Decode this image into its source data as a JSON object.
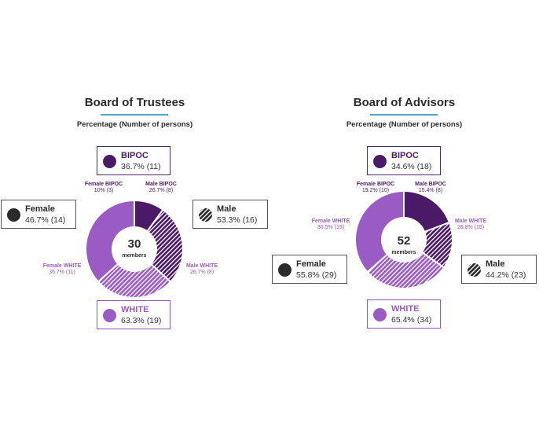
{
  "colors": {
    "dark_purple": "#4a1a66",
    "light_purple": "#9a5bc4",
    "teal": "#4aa9c9",
    "dark": "#2b2b2b"
  },
  "chart_data": [
    {
      "type": "pie",
      "title": "Board of Trustees",
      "subtitle": "Percentage (Number of persons)",
      "center_value": "30",
      "center_label": "members",
      "slices": [
        {
          "name": "Female BIPOC",
          "value": 10,
          "count": 3,
          "label": "Female BIPOC",
          "value_label": "10% (3)"
        },
        {
          "name": "Male BIPOC",
          "value": 26.7,
          "count": 8,
          "label": "Male BIPOC",
          "value_label": "26.7% (8)"
        },
        {
          "name": "Male WHITE",
          "value": 26.7,
          "count": 8,
          "label": "Male WHITE",
          "value_label": "26.7% (8)"
        },
        {
          "name": "Female WHITE",
          "value": 36.7,
          "count": 11,
          "label": "Female WHITE",
          "value_label": "36.7% (11)"
        }
      ],
      "legend": {
        "bipoc": {
          "label": "BIPOC",
          "value": "36.7% (11)"
        },
        "white": {
          "label": "WHITE",
          "value": "63.3% (19)"
        },
        "female": {
          "label": "Female",
          "value": "46.7% (14)"
        },
        "male": {
          "label": "Male",
          "value": "53.3% (16)"
        }
      }
    },
    {
      "type": "pie",
      "title": "Board of Advisors",
      "subtitle": "Percentage (Number of persons)",
      "center_value": "52",
      "center_label": "members",
      "slices": [
        {
          "name": "Female BIPOC",
          "value": 19.2,
          "count": 10,
          "label": "Female BIPOC",
          "value_label": "19.2% (10)"
        },
        {
          "name": "Male BIPOC",
          "value": 15.4,
          "count": 8,
          "label": "Male BIPOC",
          "value_label": "15.4% (8)"
        },
        {
          "name": "Male WHITE",
          "value": 28.8,
          "count": 15,
          "label": "Male WHITE",
          "value_label": "28.8% (15)"
        },
        {
          "name": "Female WHITE",
          "value": 36.5,
          "count": 19,
          "label": "Female WHITE",
          "value_label": "36.5% (19)"
        }
      ],
      "legend": {
        "bipoc": {
          "label": "BIPOC",
          "value": "34.6% (18)"
        },
        "white": {
          "label": "WHITE",
          "value": "65.4% (34)"
        },
        "female": {
          "label": "Female",
          "value": "55.8% (29)"
        },
        "male": {
          "label": "Male",
          "value": "44.2% (23)"
        }
      }
    }
  ]
}
